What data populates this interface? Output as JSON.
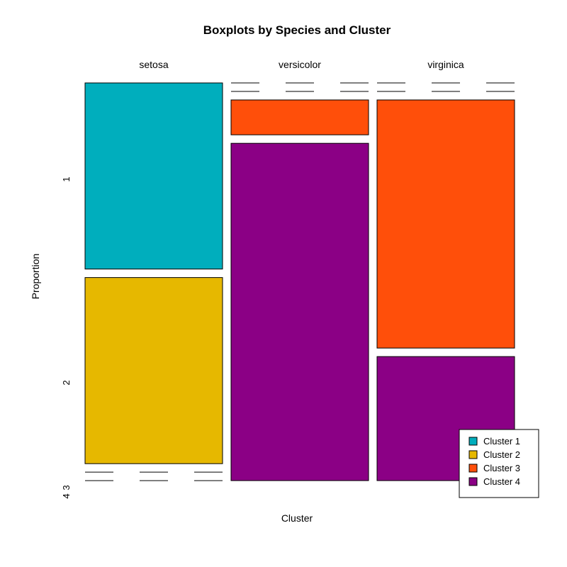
{
  "chart_data": {
    "type": "mosaic",
    "title": "Boxplots by Species and Cluster",
    "xlabel": "Cluster",
    "ylabel": "Proportion",
    "categories": [
      "setosa",
      "versicolor",
      "virginica"
    ],
    "col_widths": [
      1,
      1,
      1
    ],
    "clusters": [
      "1",
      "2",
      "3",
      "4"
    ],
    "y_tick_labels": [
      "1",
      "2",
      "3",
      "4"
    ],
    "series": [
      {
        "name": "Cluster 1",
        "color": "#00AEBD",
        "values": [
          0.48,
          0.0,
          0.0
        ]
      },
      {
        "name": "Cluster 2",
        "color": "#E6B800",
        "values": [
          0.48,
          0.0,
          0.0
        ]
      },
      {
        "name": "Cluster 3",
        "color": "#FF4F0A",
        "values": [
          0.0,
          0.09,
          0.64
        ]
      },
      {
        "name": "Cluster 4",
        "color": "#8B0085",
        "values": [
          0.0,
          0.87,
          0.32
        ]
      }
    ],
    "legend": {
      "position": "bottom-right",
      "entries": [
        "Cluster 1",
        "Cluster 2",
        "Cluster 3",
        "Cluster 4"
      ]
    },
    "grid": false
  }
}
